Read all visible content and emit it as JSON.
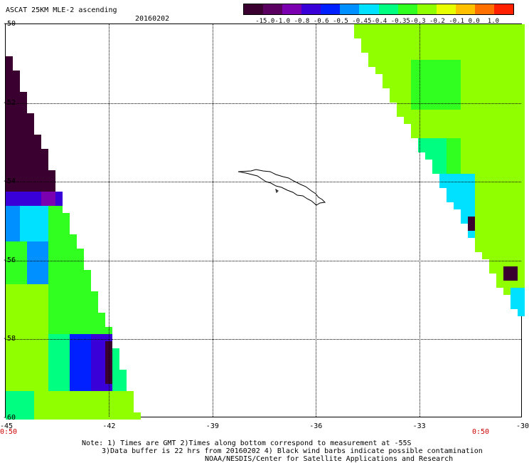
{
  "header": {
    "title": "ASCAT 25KM MLE-2 ascending",
    "date": "20160202"
  },
  "colorbar": {
    "labels": [
      "-15.0",
      "-1.0",
      "-0.8",
      "-0.6",
      "-0.5",
      "-0.45",
      "-0.4",
      "-0.35",
      "-0.3",
      "-0.2",
      "-0.1",
      "0.0",
      "1.0"
    ],
    "colors": [
      "#3a0030",
      "#5a0060",
      "#7a00b0",
      "#3a00d8",
      "#0020ff",
      "#0090ff",
      "#00e0ff",
      "#00ff80",
      "#30ff20",
      "#90ff00",
      "#e8ff00",
      "#ffc000",
      "#ff7000",
      "#ff2000"
    ]
  },
  "axes": {
    "x_ticks": [
      "-45",
      "-42",
      "-39",
      "-36",
      "-33",
      "-30"
    ],
    "y_ticks": [
      "-50",
      "-52",
      "-54",
      "-56",
      "-58",
      "-60"
    ],
    "lon_range": [
      -45,
      -30
    ],
    "lat_range": [
      -60,
      -50
    ]
  },
  "timecodes": {
    "left": "0:50",
    "right": "0:50"
  },
  "notes": {
    "line1": "Note: 1) Times are GMT 2)Times along bottom correspond to measurement at -55S",
    "line2": "3)Data buffer is 22 hrs from 20160202 4) Black wind barbs indicate possible contamination",
    "line3": "NOAA/NESDIS/Center for Satellite Applications and Research"
  }
}
